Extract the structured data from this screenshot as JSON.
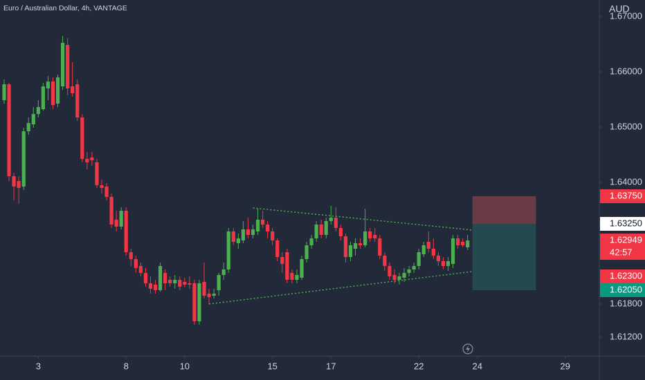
{
  "chart_data": {
    "type": "candlestick",
    "title": "Euro / Australian Dollar, 4h, VANTAGE",
    "currency": "AUD",
    "up_color": "#4caf50",
    "down_color": "#f23645",
    "open": [
      1.654875,
      1.65775,
      1.641125,
      1.64025,
      1.63925,
      1.64925,
      1.6505,
      1.652375,
      1.65325,
      1.657,
      1.65825,
      1.65425,
      1.657375,
      1.664875,
      1.657375,
      1.65775,
      1.65175,
      1.64425,
      1.6445,
      1.643625,
      1.6395,
      1.63925,
      1.637375,
      1.63325,
      1.632,
      1.634875,
      1.627375,
      1.626125,
      1.624875,
      1.623625,
      1.62175,
      1.6215,
      1.6205,
      1.623625,
      1.622375,
      1.62175,
      1.622375,
      1.622,
      1.62175,
      1.62175,
      1.614875,
      1.622,
      1.619875,
      1.6195,
      1.6205,
      1.62325,
      1.62425,
      1.631125,
      1.629,
      1.6295,
      1.6315,
      1.6305,
      1.631125,
      1.63325,
      1.632375,
      1.631125,
      1.6295,
      1.6265,
      1.627375,
      1.623625,
      1.622375,
      1.62275,
      1.626125,
      1.628625,
      1.629875,
      1.632375,
      1.6305,
      1.633,
      1.633625,
      1.63175,
      1.63025,
      1.6265,
      1.628,
      1.629,
      1.628625,
      1.631125,
      1.6305,
      1.629875,
      1.62675,
      1.624875,
      1.62325,
      1.622375,
      1.62275,
      1.623625,
      1.62425,
      1.624875,
      1.627,
      1.62925,
      1.628,
      1.62675,
      1.62575,
      1.624875,
      1.62525,
      1.629875,
      1.62925,
      1.62825
    ],
    "high": [
      1.658625,
      1.658,
      1.64175,
      1.641125,
      1.649875,
      1.65175,
      1.653625,
      1.654875,
      1.658,
      1.65925,
      1.659,
      1.6595,
      1.6665,
      1.666125,
      1.66175,
      1.658625,
      1.652375,
      1.6455,
      1.6455,
      1.64425,
      1.6405,
      1.639875,
      1.638,
      1.634875,
      1.6355,
      1.6355,
      1.628,
      1.62675,
      1.6255,
      1.6245,
      1.623,
      1.622375,
      1.6255,
      1.62425,
      1.623,
      1.62325,
      1.623,
      1.62275,
      1.623,
      1.622375,
      1.622375,
      1.6255,
      1.62075,
      1.62075,
      1.623625,
      1.6255,
      1.63175,
      1.63175,
      1.63075,
      1.633,
      1.633625,
      1.632375,
      1.63525,
      1.634875,
      1.633,
      1.63175,
      1.629875,
      1.627375,
      1.628,
      1.62425,
      1.62425,
      1.62675,
      1.62925,
      1.6305,
      1.633,
      1.63325,
      1.633625,
      1.63575,
      1.6355,
      1.632375,
      1.63075,
      1.62925,
      1.629875,
      1.629875,
      1.63525,
      1.63175,
      1.63175,
      1.6305,
      1.627375,
      1.6255,
      1.62425,
      1.623625,
      1.6245,
      1.624875,
      1.6255,
      1.628,
      1.62925,
      1.631125,
      1.629875,
      1.627375,
      1.6265,
      1.6265,
      1.6305,
      1.6305,
      1.629875,
      1.6305
    ],
    "low": [
      1.65425,
      1.64025,
      1.63675,
      1.636125,
      1.638625,
      1.648625,
      1.649875,
      1.65175,
      1.653,
      1.654875,
      1.65325,
      1.653625,
      1.65675,
      1.65575,
      1.6555,
      1.651125,
      1.643625,
      1.642375,
      1.643,
      1.639,
      1.638,
      1.63675,
      1.63175,
      1.631125,
      1.6315,
      1.62675,
      1.624875,
      1.623625,
      1.623,
      1.621125,
      1.619875,
      1.619875,
      1.62025,
      1.6205,
      1.621125,
      1.62075,
      1.6205,
      1.621,
      1.62075,
      1.61425,
      1.61425,
      1.619,
      1.618,
      1.619,
      1.6195,
      1.622375,
      1.623625,
      1.628625,
      1.628,
      1.629,
      1.629875,
      1.629875,
      1.6305,
      1.63175,
      1.629875,
      1.628625,
      1.62575,
      1.623625,
      1.62175,
      1.62175,
      1.62175,
      1.622375,
      1.6255,
      1.628,
      1.62925,
      1.629875,
      1.629875,
      1.632375,
      1.631125,
      1.6295,
      1.6255,
      1.62575,
      1.62675,
      1.628,
      1.62825,
      1.62925,
      1.62925,
      1.626125,
      1.624,
      1.622375,
      1.62175,
      1.6215,
      1.622,
      1.623,
      1.623625,
      1.62425,
      1.6265,
      1.627375,
      1.626125,
      1.624875,
      1.62425,
      1.624,
      1.6245,
      1.628,
      1.62825,
      1.62775
    ],
    "close": [
      1.65775,
      1.641125,
      1.63925,
      1.639,
      1.64925,
      1.65075,
      1.652375,
      1.653625,
      1.657375,
      1.65825,
      1.654,
      1.659,
      1.66525,
      1.657,
      1.656125,
      1.65175,
      1.64425,
      1.643625,
      1.644,
      1.6395,
      1.639,
      1.637375,
      1.632375,
      1.632,
      1.634875,
      1.627375,
      1.626125,
      1.6245,
      1.623625,
      1.62175,
      1.62075,
      1.6205,
      1.624875,
      1.62175,
      1.62175,
      1.622375,
      1.621125,
      1.6215,
      1.6215,
      1.614875,
      1.62175,
      1.6195,
      1.61925,
      1.619875,
      1.62325,
      1.62425,
      1.631125,
      1.62925,
      1.629875,
      1.6315,
      1.6305,
      1.6315,
      1.63325,
      1.632375,
      1.631125,
      1.6295,
      1.6265,
      1.62525,
      1.622375,
      1.622375,
      1.62325,
      1.626125,
      1.628625,
      1.629875,
      1.632375,
      1.6305,
      1.633,
      1.633625,
      1.63175,
      1.63025,
      1.6265,
      1.628625,
      1.629,
      1.628625,
      1.631125,
      1.629875,
      1.629875,
      1.62675,
      1.624875,
      1.623,
      1.622375,
      1.623,
      1.623625,
      1.62425,
      1.624875,
      1.627375,
      1.628625,
      1.628,
      1.62675,
      1.62575,
      1.624875,
      1.62575,
      1.629875,
      1.628625,
      1.628625,
      1.62949
    ],
    "xlim": [
      -0.85,
      122
    ],
    "xticks": [
      {
        "value": 7,
        "label": "3"
      },
      {
        "value": 25,
        "label": "8"
      },
      {
        "value": 37,
        "label": "10"
      },
      {
        "value": 55,
        "label": "15"
      },
      {
        "value": 67,
        "label": "17"
      },
      {
        "value": 85,
        "label": "22"
      },
      {
        "value": 97,
        "label": "24"
      },
      {
        "value": 115,
        "label": "29"
      }
    ],
    "ylim": [
      1.608625,
      1.673
    ],
    "yticks": [
      {
        "value": 1.67,
        "label": "1.67000"
      },
      {
        "value": 1.66,
        "label": "1.66000"
      },
      {
        "value": 1.65,
        "label": "1.65000"
      },
      {
        "value": 1.64,
        "label": "1.64000"
      },
      {
        "value": 1.618,
        "label": "1.61800"
      },
      {
        "value": 1.612,
        "label": "1.61200"
      }
    ],
    "trendlines": [
      {
        "x": [
          51,
          96
        ],
        "y": [
          1.635375,
          1.631375
        ]
      },
      {
        "x": [
          42,
          96
        ],
        "y": [
          1.618,
          1.623875
        ]
      }
    ],
    "position": {
      "x": [
        96,
        109
      ],
      "entry": 1.6325,
      "stop": 1.6375,
      "target": 1.6205
    },
    "price_labels": [
      {
        "value": 1.6375,
        "label": "1.63750",
        "color": "#f23645"
      },
      {
        "value": 1.6325,
        "label": "1.63250",
        "color": "#ffffff"
      },
      {
        "value": 1.62949,
        "label": "1.62949",
        "countdown": "42:57",
        "color": "#f23645"
      },
      {
        "value": 1.623,
        "label": "1.62300",
        "color": "#f23645"
      },
      {
        "value": 1.6205,
        "label": "1.62050",
        "color": "#089981"
      }
    ]
  }
}
